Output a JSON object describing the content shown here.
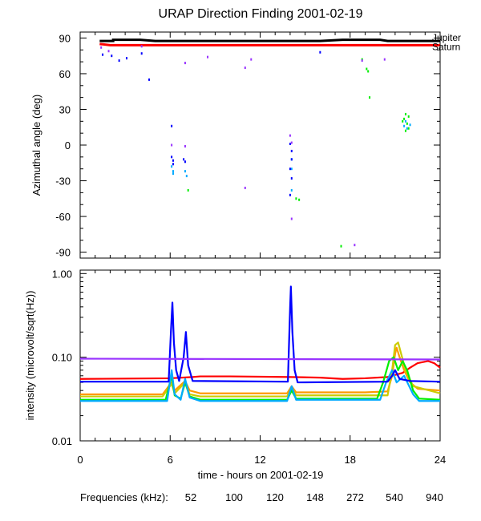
{
  "title": "URAP Direction Finding  2001-02-19",
  "chart_data": [
    {
      "type": "scatter",
      "panel": "top",
      "ylabel": "Azimuthal angle (deg)",
      "xlim": [
        0,
        24
      ],
      "ylim": [
        -95,
        95
      ],
      "yticks": [
        90,
        60,
        30,
        0,
        -30,
        -60,
        -90
      ],
      "ytick_labels": [
        "90",
        "60",
        "30",
        "0",
        "-30",
        "-60",
        "-90"
      ],
      "reference_lines": [
        {
          "name": "Jupiter",
          "color": "#000000",
          "points": [
            [
              1.3,
              87.5
            ],
            [
              2.2,
              87.5
            ],
            [
              2.2,
              88.5
            ],
            [
              4,
              88.5
            ],
            [
              5,
              87.5
            ],
            [
              16,
              87.5
            ],
            [
              17.5,
              88.5
            ],
            [
              20,
              88.5
            ],
            [
              20.5,
              87.5
            ],
            [
              24,
              87.5
            ]
          ]
        },
        {
          "name": "Saturn",
          "color": "#ff0000",
          "points": [
            [
              1.3,
              85
            ],
            [
              2,
              84
            ],
            [
              24,
              84
            ]
          ]
        }
      ],
      "series": [
        {
          "name": "52",
          "color": "#ff0000",
          "points": []
        },
        {
          "name": "100",
          "color": "#ff9900",
          "points": []
        },
        {
          "name": "120",
          "color": "#cccc00",
          "points": []
        },
        {
          "name": "148",
          "color": "#00ee00",
          "points": [
            [
              7.2,
              -38
            ],
            [
              14.4,
              -45
            ],
            [
              14.6,
              -46
            ],
            [
              17.4,
              -85
            ],
            [
              18.8,
              72
            ],
            [
              19.1,
              64
            ],
            [
              19.2,
              62
            ],
            [
              19.3,
              40
            ],
            [
              21.6,
              22
            ],
            [
              21.8,
              18
            ],
            [
              21.9,
              14
            ],
            [
              21.7,
              26
            ],
            [
              21.5,
              20
            ],
            [
              21.7,
              12
            ],
            [
              21.9,
              24
            ]
          ]
        },
        {
          "name": "272",
          "color": "#00aaff",
          "points": [
            [
              6.1,
              -18
            ],
            [
              6.2,
              -22
            ],
            [
              6.2,
              -24
            ],
            [
              7.0,
              -22
            ],
            [
              7.1,
              -26
            ],
            [
              14.1,
              -12
            ],
            [
              14.1,
              -20
            ],
            [
              14.1,
              -38
            ],
            [
              21.6,
              16
            ],
            [
              21.7,
              20
            ],
            [
              21.8,
              14
            ],
            [
              22.0,
              17
            ]
          ]
        },
        {
          "name": "540",
          "color": "#0000ff",
          "points": [
            [
              1.5,
              76
            ],
            [
              2.1,
              75
            ],
            [
              2.6,
              71
            ],
            [
              3.1,
              73
            ],
            [
              4.1,
              77
            ],
            [
              4.6,
              55
            ],
            [
              6.1,
              16
            ],
            [
              6.1,
              -10
            ],
            [
              6.2,
              -13
            ],
            [
              6.2,
              -16
            ],
            [
              6.9,
              -12
            ],
            [
              7.0,
              -14
            ],
            [
              14.0,
              1
            ],
            [
              14.1,
              -5
            ],
            [
              14.1,
              -12
            ],
            [
              14.0,
              -20
            ],
            [
              14.1,
              -28
            ],
            [
              14.0,
              -42
            ],
            [
              16.0,
              78
            ]
          ]
        },
        {
          "name": "940",
          "color": "#9933ff",
          "points": [
            [
              1.4,
              82
            ],
            [
              1.9,
              79
            ],
            [
              4.1,
              83
            ],
            [
              7.0,
              69
            ],
            [
              8.5,
              74
            ],
            [
              11.0,
              65
            ],
            [
              11.4,
              72
            ],
            [
              6.1,
              0
            ],
            [
              7.0,
              -1
            ],
            [
              11.0,
              -36
            ],
            [
              14.0,
              8
            ],
            [
              14.1,
              2
            ],
            [
              14.1,
              -62
            ],
            [
              18.3,
              -84
            ],
            [
              18.8,
              71
            ],
            [
              20.3,
              72
            ]
          ]
        }
      ]
    },
    {
      "type": "line",
      "panel": "bottom",
      "scale": "log",
      "title": "",
      "xlabel": "time - hours on 2001-02-19",
      "ylabel": "intensity (microvolt/sqrt(Hz))",
      "xlim": [
        0,
        24
      ],
      "ylim": [
        0.01,
        1.1
      ],
      "yticks": [
        0.01,
        0.1,
        1.0
      ],
      "ytick_labels": [
        "0.01",
        "0.10",
        "1.00"
      ],
      "xticks": [
        0,
        6,
        12,
        18,
        24
      ],
      "xtick_labels": [
        "0",
        "6",
        "12",
        "18",
        "24"
      ],
      "legend_title": "Frequencies (kHz):",
      "series": [
        {
          "name": "52",
          "color": "#ff0000",
          "points": [
            [
              0,
              0.055
            ],
            [
              6,
              0.056
            ],
            [
              7.5,
              0.058
            ],
            [
              8,
              0.059
            ],
            [
              10,
              0.059
            ],
            [
              14,
              0.058
            ],
            [
              16,
              0.057
            ],
            [
              17.5,
              0.055
            ],
            [
              19,
              0.056
            ],
            [
              20.5,
              0.058
            ],
            [
              21.5,
              0.065
            ],
            [
              22,
              0.075
            ],
            [
              22.5,
              0.085
            ],
            [
              23.2,
              0.09
            ],
            [
              23.6,
              0.085
            ],
            [
              24,
              0.075
            ]
          ]
        },
        {
          "name": "100",
          "color": "#ff9900",
          "points": [
            [
              0,
              0.036
            ],
            [
              5.5,
              0.036
            ],
            [
              6.1,
              0.05
            ],
            [
              6.3,
              0.04
            ],
            [
              7,
              0.052
            ],
            [
              7.3,
              0.04
            ],
            [
              8,
              0.037
            ],
            [
              13.8,
              0.037
            ],
            [
              14.1,
              0.045
            ],
            [
              14.4,
              0.038
            ],
            [
              19,
              0.038
            ],
            [
              20.5,
              0.039
            ],
            [
              20.8,
              0.06
            ],
            [
              21,
              0.11
            ],
            [
              21.1,
              0.13
            ],
            [
              21.3,
              0.1
            ],
            [
              21.6,
              0.07
            ],
            [
              22,
              0.05
            ],
            [
              22.5,
              0.042
            ],
            [
              24,
              0.04
            ]
          ]
        },
        {
          "name": "120",
          "color": "#cccc00",
          "points": [
            [
              0,
              0.034
            ],
            [
              5.5,
              0.034
            ],
            [
              6.1,
              0.048
            ],
            [
              6.3,
              0.037
            ],
            [
              7,
              0.05
            ],
            [
              7.3,
              0.036
            ],
            [
              8,
              0.034
            ],
            [
              13.8,
              0.034
            ],
            [
              14.1,
              0.043
            ],
            [
              14.4,
              0.035
            ],
            [
              20.5,
              0.035
            ],
            [
              20.8,
              0.07
            ],
            [
              21,
              0.14
            ],
            [
              21.2,
              0.15
            ],
            [
              21.4,
              0.11
            ],
            [
              21.7,
              0.07
            ],
            [
              22.2,
              0.045
            ],
            [
              24,
              0.037
            ]
          ]
        },
        {
          "name": "148",
          "color": "#00ee00",
          "points": [
            [
              0,
              0.031
            ],
            [
              5.7,
              0.031
            ],
            [
              6.1,
              0.06
            ],
            [
              6.3,
              0.035
            ],
            [
              6.7,
              0.032
            ],
            [
              7,
              0.05
            ],
            [
              7.3,
              0.034
            ],
            [
              8,
              0.031
            ],
            [
              13.8,
              0.031
            ],
            [
              14.1,
              0.04
            ],
            [
              14.4,
              0.032
            ],
            [
              19.8,
              0.032
            ],
            [
              20.2,
              0.05
            ],
            [
              20.6,
              0.09
            ],
            [
              20.9,
              0.1
            ],
            [
              21.2,
              0.07
            ],
            [
              21.5,
              0.09
            ],
            [
              21.8,
              0.07
            ],
            [
              22.2,
              0.04
            ],
            [
              22.6,
              0.032
            ],
            [
              24,
              0.031
            ]
          ]
        },
        {
          "name": "272",
          "color": "#00aaff",
          "points": [
            [
              0,
              0.03
            ],
            [
              5.8,
              0.03
            ],
            [
              6.1,
              0.07
            ],
            [
              6.3,
              0.036
            ],
            [
              6.7,
              0.031
            ],
            [
              7,
              0.055
            ],
            [
              7.3,
              0.033
            ],
            [
              8,
              0.03
            ],
            [
              13.8,
              0.03
            ],
            [
              14.1,
              0.045
            ],
            [
              14.4,
              0.031
            ],
            [
              20,
              0.031
            ],
            [
              20.4,
              0.05
            ],
            [
              20.8,
              0.07
            ],
            [
              21.1,
              0.05
            ],
            [
              21.6,
              0.06
            ],
            [
              22.2,
              0.036
            ],
            [
              22.6,
              0.03
            ],
            [
              24,
              0.03
            ]
          ]
        },
        {
          "name": "540",
          "color": "#0000ff",
          "points": [
            [
              0,
              0.051
            ],
            [
              5.9,
              0.051
            ],
            [
              6.05,
              0.2
            ],
            [
              6.15,
              0.45
            ],
            [
              6.25,
              0.15
            ],
            [
              6.4,
              0.07
            ],
            [
              6.6,
              0.052
            ],
            [
              6.9,
              0.1
            ],
            [
              7.05,
              0.2
            ],
            [
              7.2,
              0.08
            ],
            [
              7.5,
              0.052
            ],
            [
              13.85,
              0.051
            ],
            [
              14.0,
              0.4
            ],
            [
              14.05,
              0.7
            ],
            [
              14.15,
              0.2
            ],
            [
              14.3,
              0.07
            ],
            [
              14.5,
              0.05
            ],
            [
              20.5,
              0.051
            ],
            [
              20.8,
              0.06
            ],
            [
              21.0,
              0.07
            ],
            [
              21.3,
              0.055
            ],
            [
              22.0,
              0.052
            ],
            [
              24,
              0.051
            ]
          ]
        },
        {
          "name": "940",
          "color": "#9933ff",
          "points": [
            [
              0,
              0.096
            ],
            [
              24,
              0.094
            ]
          ]
        }
      ]
    }
  ]
}
